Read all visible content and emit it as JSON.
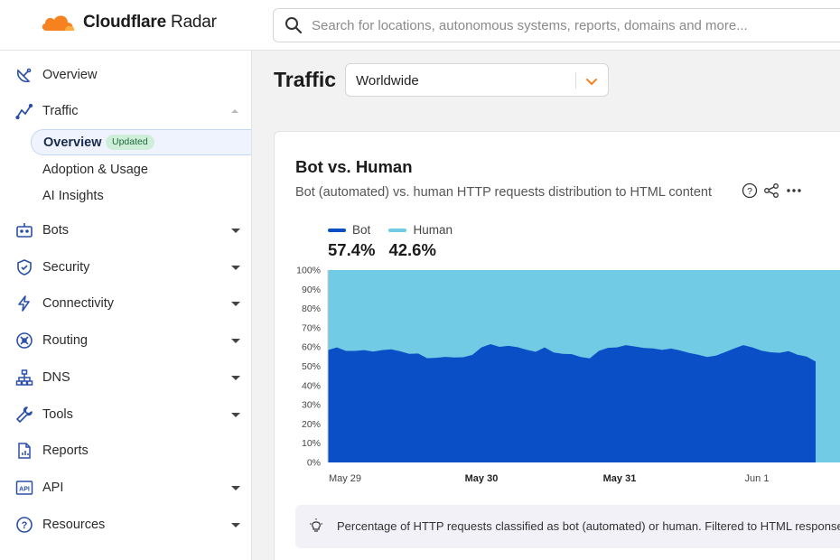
{
  "header": {
    "brand": "Cloudflare",
    "brand_suffix": "Radar",
    "search_placeholder": "Search for locations, autonomous systems, reports, domains and more..."
  },
  "sidebar": {
    "items": [
      {
        "label": "Overview",
        "icon": "satellite-dish-icon"
      },
      {
        "label": "Traffic",
        "icon": "traffic-line-icon",
        "expanded": true
      },
      {
        "label": "Bots",
        "icon": "bot-icon"
      },
      {
        "label": "Security",
        "icon": "shield-icon"
      },
      {
        "label": "Connectivity",
        "icon": "bolt-icon"
      },
      {
        "label": "Routing",
        "icon": "routing-icon"
      },
      {
        "label": "DNS",
        "icon": "dns-hierarchy-icon"
      },
      {
        "label": "Tools",
        "icon": "wrench-icon"
      },
      {
        "label": "Reports",
        "icon": "report-icon"
      },
      {
        "label": "API",
        "icon": "api-icon"
      },
      {
        "label": "Resources",
        "icon": "help-circle-icon"
      }
    ],
    "traffic_sub": [
      {
        "label": "Overview",
        "badge": "Updated",
        "active": true
      },
      {
        "label": "Adoption & Usage"
      },
      {
        "label": "AI Insights"
      }
    ]
  },
  "main": {
    "title": "Traffic",
    "location_select": "Worldwide"
  },
  "card": {
    "title": "Bot vs. Human",
    "subtitle": "Bot (automated) vs. human HTTP requests distribution to HTML content",
    "info_text": "Percentage of HTTP requests classified as bot (automated) or human. Filtered to HTML responses, rep"
  },
  "colors": {
    "accent": "#f6821f",
    "bot": "#0a4fc6",
    "human": "#72cbe4"
  },
  "chart_data": {
    "type": "area",
    "stacked": true,
    "yticks": [
      "0%",
      "10%",
      "20%",
      "30%",
      "40%",
      "50%",
      "60%",
      "70%",
      "80%",
      "90%",
      "100%"
    ],
    "ylim": [
      0,
      100
    ],
    "x_labels": [
      {
        "label": "May 29",
        "bold": false
      },
      {
        "label": "May 30",
        "bold": true
      },
      {
        "label": "May 31",
        "bold": true
      },
      {
        "label": "Jun 1",
        "bold": false
      }
    ],
    "series": [
      {
        "name": "Bot",
        "summary": "57.4%",
        "values": [
          58.4,
          59.8,
          58.0,
          58.0,
          58.4,
          57.6,
          58.4,
          58.8,
          57.8,
          56.5,
          56.6,
          54.2,
          54.4,
          54.9,
          54.6,
          54.7,
          55.9,
          59.8,
          61.5,
          60.1,
          60.6,
          59.9,
          58.6,
          57.5,
          59.8,
          57.2,
          56.5,
          56.3,
          54.8,
          54.1,
          58.0,
          59.6,
          59.8,
          61.0,
          60.3,
          59.5,
          59.3,
          58.5,
          59.2,
          58.2,
          56.9,
          56.0,
          54.8,
          55.6,
          57.4,
          59.3,
          61.0,
          59.8,
          58.1,
          57.3,
          57.0,
          57.9,
          56.0,
          55.0,
          52.5
        ]
      },
      {
        "name": "Human",
        "summary": "42.6%"
      }
    ]
  }
}
